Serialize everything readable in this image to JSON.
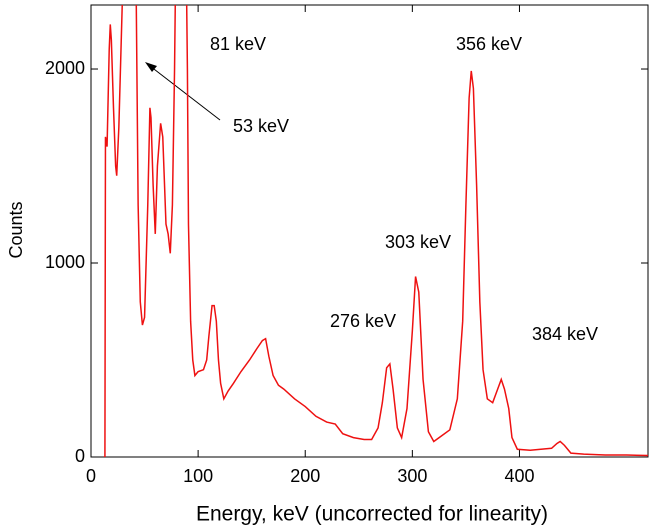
{
  "chart_data": {
    "type": "line",
    "xlabel": "Energy, keV (uncorrected for linearity)",
    "ylabel": "Counts",
    "color": "#ee1111",
    "xlim": [
      0,
      520
    ],
    "xticks": [
      0,
      100,
      200,
      300,
      400
    ],
    "ylim": [
      0,
      2330
    ],
    "yticks": [
      0,
      1000,
      2000
    ],
    "annotations": [
      "81 keV",
      "356 keV",
      "53 keV",
      "303 keV",
      "276 keV",
      "384 keV"
    ],
    "x": [
      12,
      13,
      13.5,
      15,
      17,
      18,
      19,
      21,
      23,
      24,
      26,
      28,
      30,
      36,
      38,
      40,
      42,
      44,
      46,
      48,
      50,
      53,
      55,
      56,
      58,
      60,
      62,
      65,
      67,
      70,
      72,
      74,
      76,
      78,
      79,
      89,
      90,
      91,
      93,
      95,
      97,
      100,
      105,
      108,
      110,
      113,
      115,
      117,
      119,
      121,
      124,
      128,
      133,
      140,
      148,
      155,
      160,
      163,
      166,
      170,
      175,
      180,
      190,
      200,
      210,
      220,
      228,
      235,
      245,
      255,
      262,
      268,
      272,
      276,
      279,
      282,
      286,
      290,
      295,
      300,
      303,
      306,
      310,
      315,
      320,
      325,
      335,
      342,
      347,
      350,
      353,
      355,
      357,
      360,
      363,
      366,
      370,
      375,
      379,
      383,
      386,
      390,
      393,
      398,
      410,
      420,
      430,
      435,
      438,
      442,
      448,
      460,
      480,
      500,
      520
    ],
    "values": [
      0,
      0,
      1650,
      1600,
      2100,
      2230,
      2150,
      1800,
      1500,
      1450,
      1700,
      2100,
      2500,
      2500,
      2500,
      2500,
      2500,
      1300,
      800,
      680,
      720,
      1300,
      1800,
      1750,
      1400,
      1150,
      1500,
      1720,
      1650,
      1200,
      1150,
      1050,
      1300,
      2000,
      2500,
      2500,
      2000,
      1200,
      700,
      500,
      420,
      440,
      450,
      500,
      620,
      780,
      780,
      700,
      500,
      380,
      300,
      340,
      380,
      440,
      500,
      560,
      600,
      610,
      520,
      420,
      370,
      350,
      300,
      260,
      210,
      180,
      170,
      120,
      100,
      90,
      90,
      150,
      280,
      460,
      480,
      350,
      150,
      100,
      250,
      650,
      930,
      850,
      400,
      130,
      80,
      100,
      140,
      300,
      700,
      1300,
      1850,
      1990,
      1900,
      1400,
      800,
      450,
      300,
      280,
      340,
      400,
      350,
      250,
      100,
      40,
      35,
      40,
      45,
      70,
      80,
      60,
      20,
      15,
      10,
      10,
      8
    ]
  }
}
